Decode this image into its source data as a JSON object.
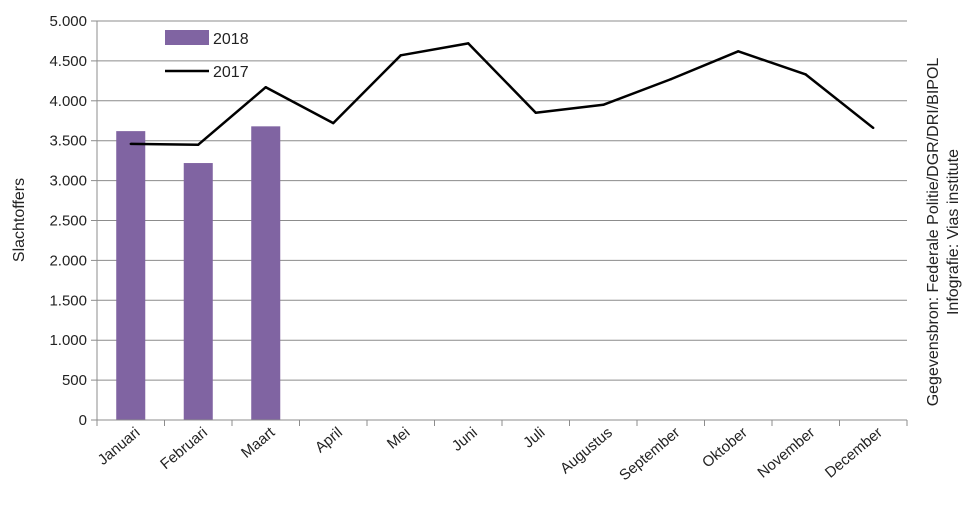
{
  "chart_data": {
    "type": "bar",
    "ylabel": "Slachtoffers",
    "ylim": [
      0,
      5000
    ],
    "yticks": [
      0,
      500,
      1000,
      1500,
      2000,
      2500,
      3000,
      3500,
      4000,
      4500,
      5000
    ],
    "ytick_labels": [
      "0",
      "500",
      "1.000",
      "1.500",
      "2.000",
      "2.500",
      "3.000",
      "3.500",
      "4.000",
      "4.500",
      "5.000"
    ],
    "categories": [
      "Januari",
      "Februari",
      "Maart",
      "April",
      "Mei",
      "Juni",
      "Juli",
      "Augustus",
      "September",
      "Oktober",
      "November",
      "December"
    ],
    "grid": true,
    "legend_position": "top-left",
    "series": [
      {
        "name": "2018",
        "type": "bar",
        "color": "#8064a2",
        "values": [
          3620,
          3220,
          3680,
          null,
          null,
          null,
          null,
          null,
          null,
          null,
          null,
          null
        ]
      },
      {
        "name": "2017",
        "type": "line",
        "color": "#000000",
        "values": [
          3460,
          3450,
          4170,
          3720,
          4570,
          4720,
          3850,
          3950,
          4270,
          4620,
          4330,
          3660
        ]
      }
    ],
    "source_line1": "Gegevensbron: Federale Politie/DGR/DRI/BIPOL",
    "source_line2": "Infografie: Vias institute"
  }
}
